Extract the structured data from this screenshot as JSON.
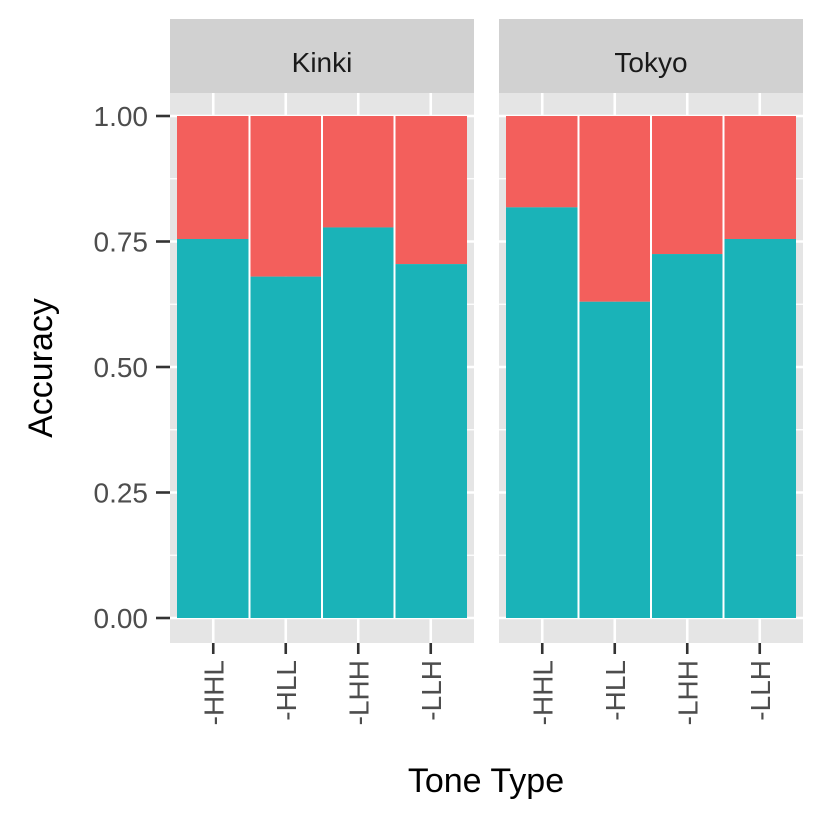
{
  "chart_data": {
    "type": "bar",
    "stacked": true,
    "xlabel": "Tone Type",
    "ylabel": "Accuracy",
    "ylim": [
      0,
      1
    ],
    "y_ticks": [
      "0.00",
      "0.25",
      "0.50",
      "0.75",
      "1.00"
    ],
    "categories": [
      "-HHL",
      "-HLL",
      "-LHH",
      "-LLH"
    ],
    "grid": true,
    "legend": "none",
    "colors": {
      "correct": "#1AB3B8",
      "incorrect": "#F35F5C",
      "panel_bg": "#E5E5E5",
      "strip_bg": "#D1D1D1",
      "grid": "#FFFFFF",
      "text": "#4D4D4D"
    },
    "facets": [
      {
        "name": "Kinki",
        "values": [
          0.755,
          0.68,
          0.778,
          0.705
        ]
      },
      {
        "name": "Tokyo",
        "values": [
          0.818,
          0.63,
          0.725,
          0.755
        ]
      }
    ]
  }
}
